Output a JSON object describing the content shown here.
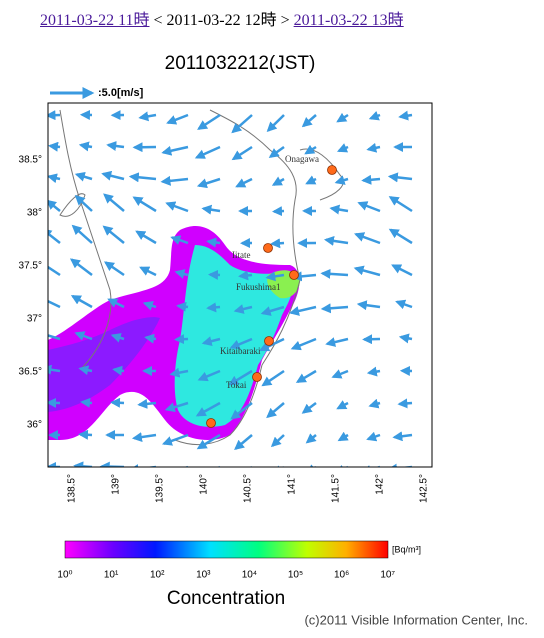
{
  "nav": {
    "prev": "2011-03-22 11時",
    "current": "< 2011-03-22 12時 >",
    "next": "2011-03-22 13時"
  },
  "map": {
    "title": "2011032212(JST)",
    "scale_label": ":5.0[m/s]",
    "lat_labels": [
      "38.5°",
      "38°",
      "37.5°",
      "37°",
      "36.5°",
      "36°"
    ],
    "lon_labels": [
      "138.5°",
      "139°",
      "139.5°",
      "140°",
      "140.5°",
      "141°",
      "141.5°",
      "142°",
      "142.5°"
    ],
    "places": [
      "Onagawa",
      "Iitate",
      "Fukushima1",
      "Kitaibaraki",
      "Tokai"
    ]
  },
  "legend": {
    "ticks": [
      "10⁰",
      "10¹",
      "10²",
      "10³",
      "10⁴",
      "10⁵",
      "10⁶",
      "10⁷"
    ],
    "unit": "[Bq/m³]",
    "title": "Concentration"
  },
  "footer": "(c)2011 Visible Information Center, Inc."
}
